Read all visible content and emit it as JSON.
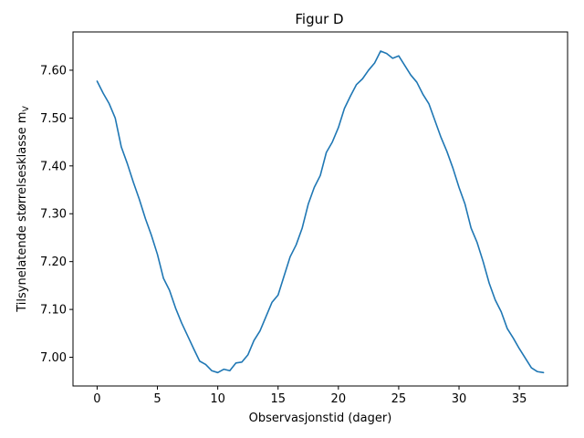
{
  "chart_data": {
    "type": "line",
    "title": "Figur D",
    "xlabel": "Observasjonstid (dager)",
    "ylabel": "Tilsynelatende størrelsesklasse m",
    "ylabel_subscript": "V",
    "xlim": [
      -2.0,
      39.0
    ],
    "ylim": [
      6.94,
      7.68
    ],
    "xticks": [
      0,
      5,
      10,
      15,
      20,
      25,
      30,
      35
    ],
    "xtick_labels": [
      "0",
      "5",
      "10",
      "15",
      "20",
      "25",
      "30",
      "35"
    ],
    "yticks": [
      7.0,
      7.1,
      7.2,
      7.3,
      7.4,
      7.5,
      7.6
    ],
    "ytick_labels": [
      "7.00",
      "7.10",
      "7.20",
      "7.30",
      "7.40",
      "7.50",
      "7.60"
    ],
    "grid": false,
    "series": [
      {
        "color": "#1f77b4",
        "x": [
          0.0,
          0.5,
          1.0,
          1.5,
          2.0,
          2.5,
          3.0,
          3.5,
          4.0,
          4.5,
          5.0,
          5.5,
          6.0,
          6.5,
          7.0,
          7.5,
          8.0,
          8.5,
          9.0,
          9.5,
          10.0,
          10.5,
          11.0,
          11.5,
          12.0,
          12.5,
          13.0,
          13.5,
          14.0,
          14.5,
          15.0,
          15.5,
          16.0,
          16.5,
          17.0,
          17.5,
          18.0,
          18.5,
          19.0,
          19.5,
          20.0,
          20.5,
          21.0,
          21.5,
          22.0,
          22.5,
          23.0,
          23.5,
          24.0,
          24.5,
          25.0,
          25.5,
          26.0,
          26.5,
          27.0,
          27.5,
          28.0,
          28.5,
          29.0,
          29.5,
          30.0,
          30.5,
          31.0,
          31.5,
          32.0,
          32.5,
          33.0,
          33.5,
          34.0,
          34.5,
          35.0,
          35.5,
          36.0,
          36.5,
          37.0
        ],
        "y": [
          7.577,
          7.552,
          7.53,
          7.5,
          7.44,
          7.405,
          7.366,
          7.33,
          7.29,
          7.255,
          7.215,
          7.165,
          7.14,
          7.103,
          7.072,
          7.045,
          7.018,
          6.992,
          6.985,
          6.972,
          6.968,
          6.975,
          6.972,
          6.988,
          6.99,
          7.005,
          7.035,
          7.055,
          7.085,
          7.115,
          7.13,
          7.17,
          7.21,
          7.235,
          7.27,
          7.32,
          7.355,
          7.38,
          7.428,
          7.45,
          7.48,
          7.52,
          7.546,
          7.57,
          7.582,
          7.6,
          7.615,
          7.64,
          7.635,
          7.625,
          7.63,
          7.61,
          7.59,
          7.575,
          7.55,
          7.53,
          7.495,
          7.46,
          7.43,
          7.395,
          7.355,
          7.32,
          7.27,
          7.24,
          7.2,
          7.155,
          7.12,
          7.095,
          7.06,
          7.04,
          7.018,
          6.998,
          6.978,
          6.97,
          6.968
        ]
      }
    ]
  }
}
